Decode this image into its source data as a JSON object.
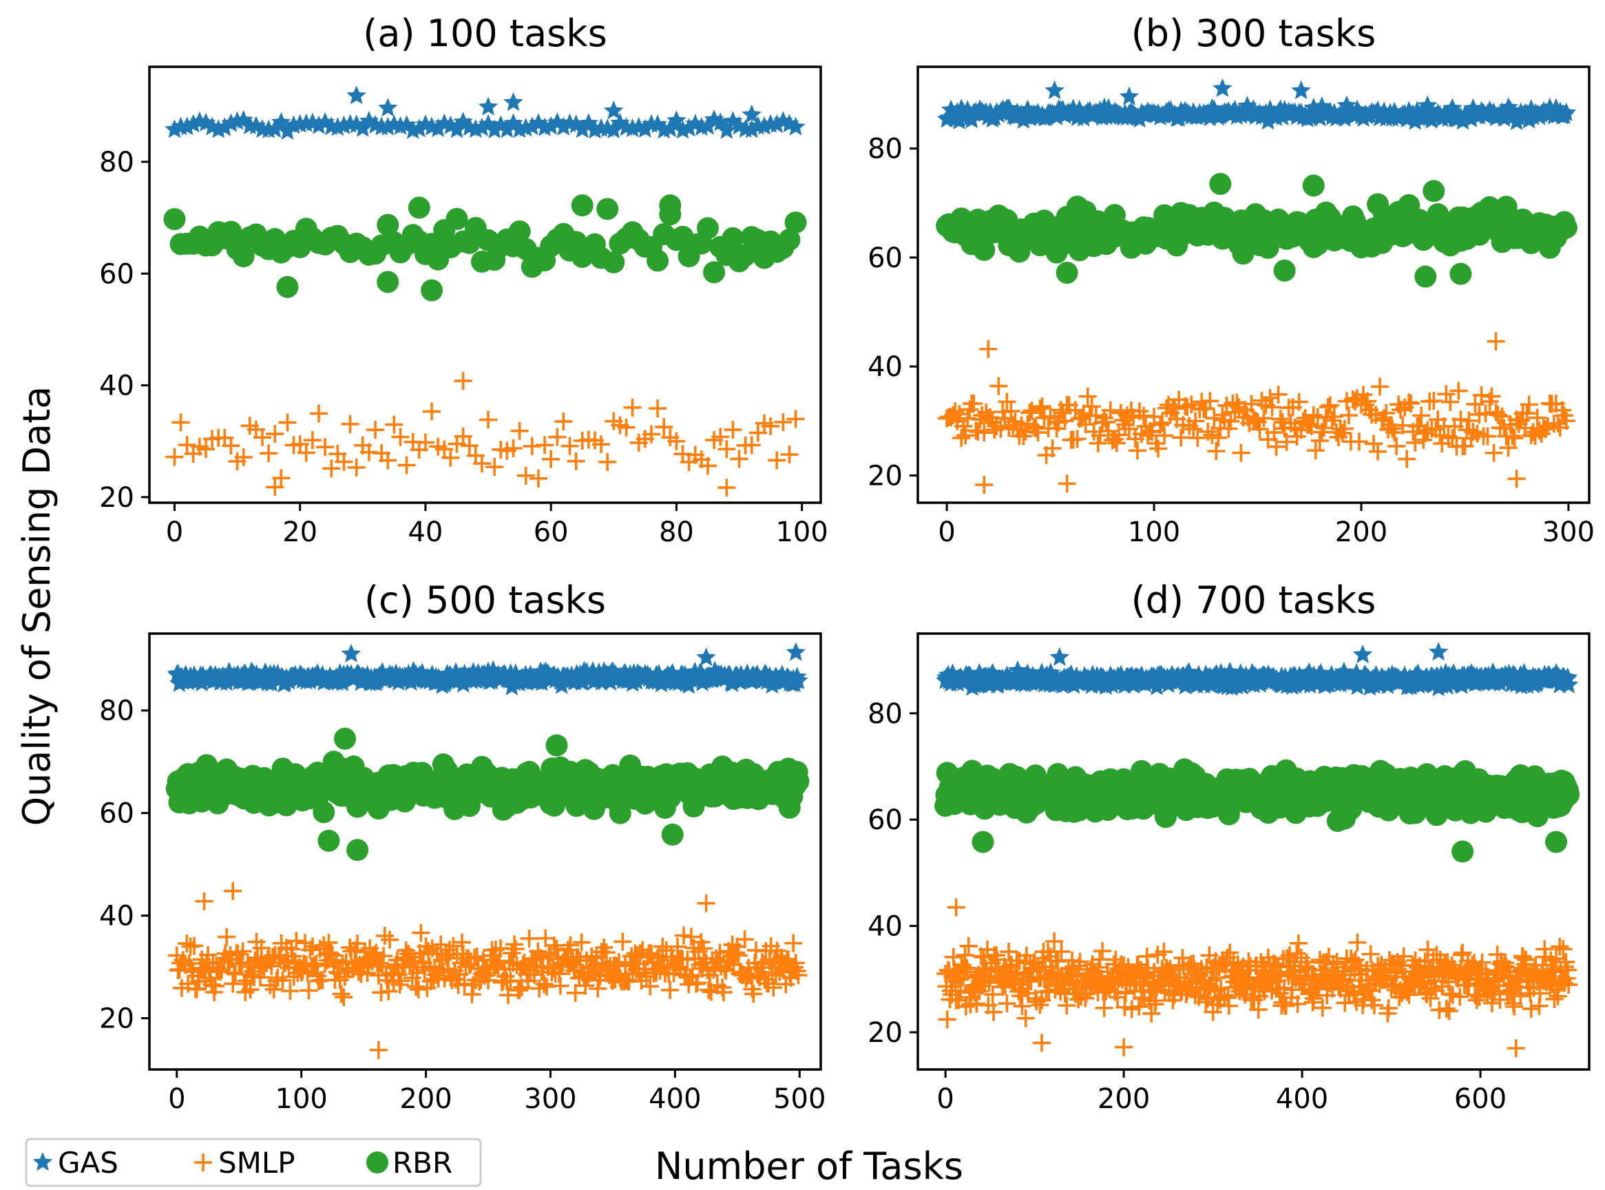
{
  "figure": {
    "ylabel": "Quality of Sensing Data",
    "xlabel": "Number of Tasks"
  },
  "legend": {
    "location": "lower-left",
    "items": [
      {
        "name": "GAS",
        "marker": "star",
        "color": "#1f77b4"
      },
      {
        "name": "SMLP",
        "marker": "plus",
        "color": "#ff7f0e"
      },
      {
        "name": "RBR",
        "marker": "circle",
        "color": "#2ca02c"
      }
    ]
  },
  "chart_data": [
    {
      "type": "scatter",
      "title": "(a) 100 tasks",
      "n": 100,
      "xlim": [
        -4,
        103
      ],
      "ylim": [
        19,
        97
      ],
      "xticks": [
        0,
        20,
        40,
        60,
        80,
        100
      ],
      "yticks": [
        20,
        40,
        60,
        80
      ],
      "series": [
        {
          "name": "GAS",
          "center": 86.3,
          "spread": 1.0,
          "outliers": [
            [
              29,
              91.8
            ],
            [
              34,
              89.6
            ],
            [
              50,
              89.8
            ],
            [
              54,
              90.6
            ],
            [
              70,
              89.1
            ],
            [
              92,
              88.4
            ]
          ]
        },
        {
          "name": "SMLP",
          "center": 30.0,
          "spread": 5.0,
          "outliers": [
            [
              46,
              40.8
            ],
            [
              16,
              21.8
            ],
            [
              88,
              21.7
            ]
          ]
        },
        {
          "name": "RBR",
          "center": 65.0,
          "spread": 4.0,
          "outliers": [
            [
              18,
              57.6
            ],
            [
              34,
              58.5
            ],
            [
              41,
              57.0
            ],
            [
              39,
              71.8
            ],
            [
              65,
              72.2
            ],
            [
              79,
              72.2
            ]
          ]
        }
      ]
    },
    {
      "type": "scatter",
      "title": "(b) 300 tasks",
      "n": 300,
      "xlim": [
        -14,
        310
      ],
      "ylim": [
        15,
        95
      ],
      "xticks": [
        0,
        100,
        200,
        300
      ],
      "yticks": [
        20,
        40,
        60,
        80
      ],
      "series": [
        {
          "name": "GAS",
          "center": 86.3,
          "spread": 1.1,
          "outliers": [
            [
              52,
              90.6
            ],
            [
              133,
              91.0
            ],
            [
              171,
              90.6
            ],
            [
              88,
              89.5
            ]
          ]
        },
        {
          "name": "SMLP",
          "center": 30.0,
          "spread": 5.0,
          "outliers": [
            [
              20,
              43.2
            ],
            [
              265,
              44.6
            ],
            [
              18,
              18.3
            ],
            [
              58,
              18.5
            ],
            [
              275,
              19.4
            ]
          ]
        },
        {
          "name": "RBR",
          "center": 65.0,
          "spread": 3.5,
          "outliers": [
            [
              132,
              73.5
            ],
            [
              177,
              73.2
            ],
            [
              235,
              72.2
            ],
            [
              58,
              57.2
            ],
            [
              163,
              57.6
            ],
            [
              248,
              57.0
            ],
            [
              231,
              56.5
            ]
          ]
        }
      ]
    },
    {
      "type": "scatter",
      "title": "(c) 500 tasks",
      "n": 500,
      "xlim": [
        -22,
        517
      ],
      "ylim": [
        10,
        95
      ],
      "xticks": [
        0,
        100,
        200,
        300,
        400,
        500
      ],
      "yticks": [
        20,
        40,
        60,
        80
      ],
      "series": [
        {
          "name": "GAS",
          "center": 86.3,
          "spread": 1.1,
          "outliers": [
            [
              497,
              91.3
            ],
            [
              140,
              91.0
            ],
            [
              425,
              90.3
            ]
          ]
        },
        {
          "name": "SMLP",
          "center": 30.0,
          "spread": 5.0,
          "outliers": [
            [
              162,
              13.8
            ],
            [
              45,
              44.8
            ],
            [
              22,
              42.8
            ],
            [
              425,
              42.4
            ]
          ]
        },
        {
          "name": "RBR",
          "center": 65.0,
          "spread": 3.3,
          "outliers": [
            [
              135,
              74.5
            ],
            [
              305,
              73.2
            ],
            [
              145,
              52.8
            ],
            [
              122,
              54.6
            ],
            [
              398,
              55.8
            ]
          ]
        }
      ]
    },
    {
      "type": "scatter",
      "title": "(d) 700 tasks",
      "n": 700,
      "xlim": [
        -31,
        722
      ],
      "ylim": [
        13,
        95
      ],
      "xticks": [
        0,
        200,
        400,
        600
      ],
      "yticks": [
        20,
        40,
        60,
        80
      ],
      "series": [
        {
          "name": "GAS",
          "center": 86.3,
          "spread": 1.1,
          "outliers": [
            [
              553,
              91.5
            ],
            [
              468,
              91.0
            ],
            [
              128,
              90.5
            ]
          ]
        },
        {
          "name": "SMLP",
          "center": 30.0,
          "spread": 5.0,
          "outliers": [
            [
              12,
              43.5
            ],
            [
              200,
              17.2
            ],
            [
              640,
              17.0
            ],
            [
              108,
              18.0
            ]
          ]
        },
        {
          "name": "RBR",
          "center": 65.0,
          "spread": 3.2,
          "outliers": [
            [
              580,
              54.0
            ],
            [
              42,
              55.8
            ],
            [
              685,
              55.8
            ]
          ]
        }
      ]
    }
  ]
}
